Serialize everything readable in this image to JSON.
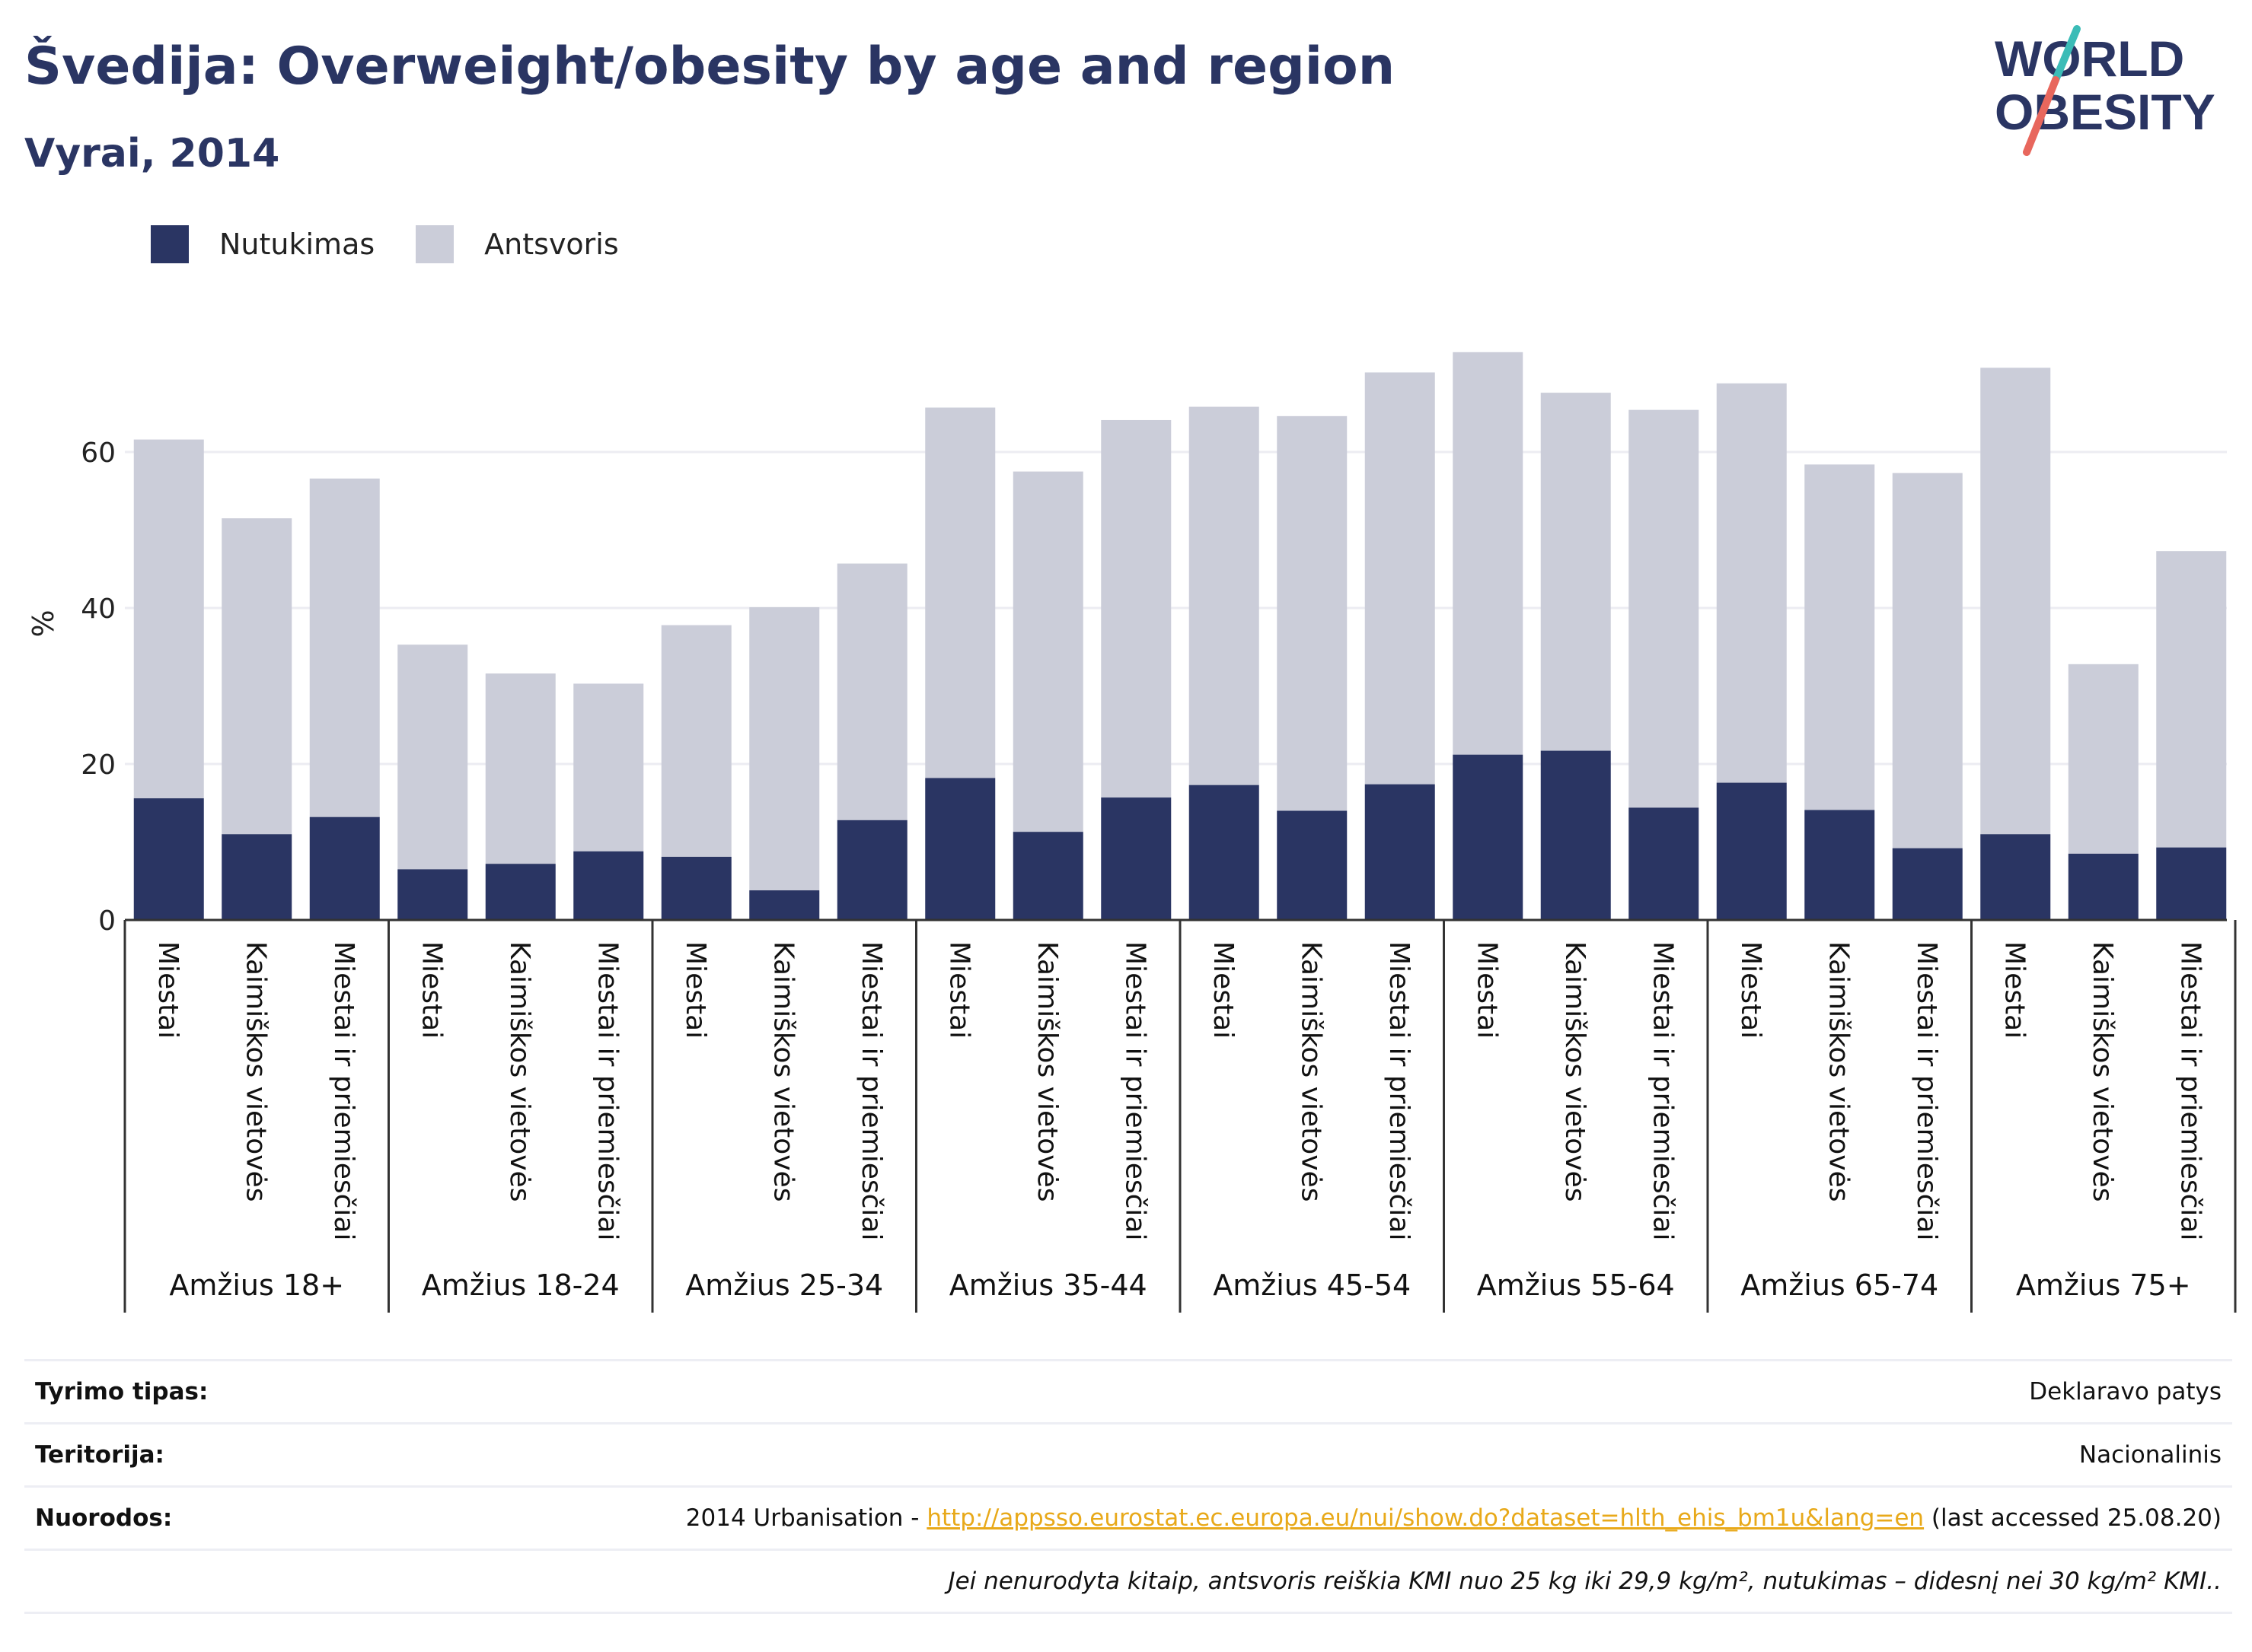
{
  "header": {
    "title": "Švedija: Overweight/obesity by age and region",
    "subtitle": "Vyrai, 2014"
  },
  "logo": {
    "line1": "WORLD",
    "line2": "OBESITY"
  },
  "colors": {
    "obesity": "#2a3563",
    "overweight": "#cbcdd9",
    "title": "#2a3563",
    "link": "#e8a91a",
    "gridline": "#ececf2",
    "axis": "#333333",
    "logo_teal": "#3bbcb7",
    "logo_red": "#e8675d"
  },
  "legend": {
    "obesity_label": "Nutukimas",
    "overweight_label": "Antsvoris"
  },
  "chart_data": {
    "type": "bar",
    "stacked": true,
    "ylabel": "%",
    "ylim": [
      0,
      75
    ],
    "yticks": [
      0,
      20,
      40,
      60
    ],
    "grid": true,
    "legend_position": "top-left",
    "regions": [
      "Miestai",
      "Kaimiškos vietovės",
      "Miestai ir priemiesčiai"
    ],
    "groups": [
      {
        "label": "Amžius 18+",
        "obesity": [
          15.6,
          11.0,
          13.2
        ],
        "total": [
          61.6,
          51.5,
          56.6
        ]
      },
      {
        "label": "Amžius 18-24",
        "obesity": [
          6.5,
          7.2,
          8.8
        ],
        "total": [
          35.3,
          31.6,
          30.3
        ]
      },
      {
        "label": "Amžius 25-34",
        "obesity": [
          8.1,
          3.8,
          12.8
        ],
        "total": [
          37.8,
          40.1,
          45.7
        ]
      },
      {
        "label": "Amžius 35-44",
        "obesity": [
          18.2,
          11.3,
          15.7
        ],
        "total": [
          65.7,
          57.5,
          64.1
        ]
      },
      {
        "label": "Amžius 45-54",
        "obesity": [
          17.3,
          14.0,
          17.4
        ],
        "total": [
          65.8,
          64.6,
          70.2
        ]
      },
      {
        "label": "Amžius 55-64",
        "obesity": [
          21.2,
          21.7,
          14.4
        ],
        "total": [
          72.8,
          67.6,
          65.4
        ]
      },
      {
        "label": "Amžius 65-74",
        "obesity": [
          17.6,
          14.1,
          9.2
        ],
        "total": [
          68.8,
          58.4,
          57.3
        ]
      },
      {
        "label": "Amžius 75+",
        "obesity": [
          11.0,
          8.5,
          9.3
        ],
        "total": [
          70.8,
          32.8,
          47.3
        ]
      }
    ]
  },
  "info": {
    "rows": [
      {
        "label": "Tyrimo tipas:",
        "value": "Deklaravo patys"
      },
      {
        "label": "Teritorija:",
        "value": "Nacionalinis"
      }
    ],
    "refs": {
      "label": "Nuorodos:",
      "prefix": "2014 Urbanisation - ",
      "link": "http://appsso.eurostat.ec.europa.eu/nui/show.do?dataset=hlth_ehis_bm1u&lang=en",
      "suffix": " (last accessed 25.08.20)"
    },
    "note": "Jei nenurodyta kitaip, antsvoris reiškia KMI nuo 25 kg iki 29,9 kg/m², nutukimas – didesnį nei 30 kg/m² KMI.."
  }
}
